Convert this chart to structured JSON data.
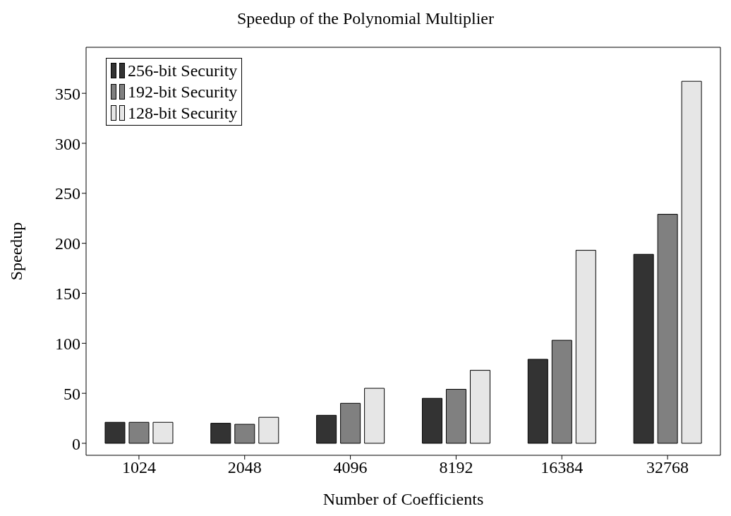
{
  "chart_data": {
    "type": "bar",
    "title": "Speedup of the Polynomial Multiplier",
    "xlabel": "Number of Coefficients",
    "ylabel": "Speedup",
    "categories": [
      "1024",
      "2048",
      "4096",
      "8192",
      "16384",
      "32768"
    ],
    "series": [
      {
        "name": "256-bit Security",
        "color": "#333333",
        "values": [
          21,
          20,
          28,
          45,
          84,
          189
        ]
      },
      {
        "name": "192-bit Security",
        "color": "#808080",
        "values": [
          21,
          19,
          40,
          54,
          103,
          229
        ]
      },
      {
        "name": "128-bit Security",
        "color": "#e6e6e6",
        "values": [
          21,
          26,
          55,
          73,
          193,
          362
        ]
      }
    ],
    "ylim": [
      -12,
      396
    ],
    "yticks": [
      0,
      50,
      100,
      150,
      200,
      250,
      300,
      350
    ],
    "grid": false,
    "legend": "top left"
  }
}
